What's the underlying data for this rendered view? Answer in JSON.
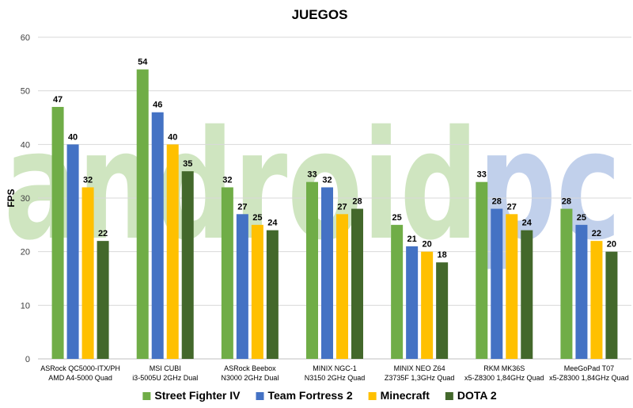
{
  "chart_data": {
    "type": "bar",
    "title": "JUEGOS",
    "ylabel": "FPS",
    "xlabel": "",
    "ylim": [
      0,
      60
    ],
    "yticks": [
      0,
      10,
      20,
      30,
      40,
      50,
      60
    ],
    "grid": true,
    "legend_position": "bottom",
    "categories": [
      [
        "ASRock QC5000-ITX/PH",
        "AMD A4-5000 Quad"
      ],
      [
        "MSI CUBI",
        "i3-5005U 2GHz Dual"
      ],
      [
        "ASRock Beebox",
        "N3000 2GHz Dual"
      ],
      [
        "MINIX NGC-1",
        "N3150 2GHz Quad"
      ],
      [
        "MINIX NEO Z64",
        "Z3735F 1,3GHz Quad"
      ],
      [
        "RKM MK36S",
        "x5-Z8300 1,84GHz Quad"
      ],
      [
        "MeeGoPad T07",
        "x5-Z8300 1,84GHz Quad"
      ]
    ],
    "series": [
      {
        "name": "Street Fighter IV",
        "color": "#70ad47",
        "values": [
          47,
          54,
          32,
          33,
          25,
          33,
          28
        ]
      },
      {
        "name": "Team Fortress 2",
        "color": "#4472c4",
        "values": [
          40,
          46,
          27,
          32,
          21,
          28,
          25
        ]
      },
      {
        "name": "Minecraft",
        "color": "#ffc000",
        "values": [
          32,
          40,
          25,
          27,
          20,
          27,
          22
        ]
      },
      {
        "name": "DOTA 2",
        "color": "#43682b",
        "values": [
          22,
          35,
          24,
          28,
          18,
          24,
          20
        ]
      }
    ]
  },
  "watermark": {
    "part1": "android",
    "part2": "pc",
    "color1": "#a9d18e",
    "color2": "#8faadc"
  }
}
